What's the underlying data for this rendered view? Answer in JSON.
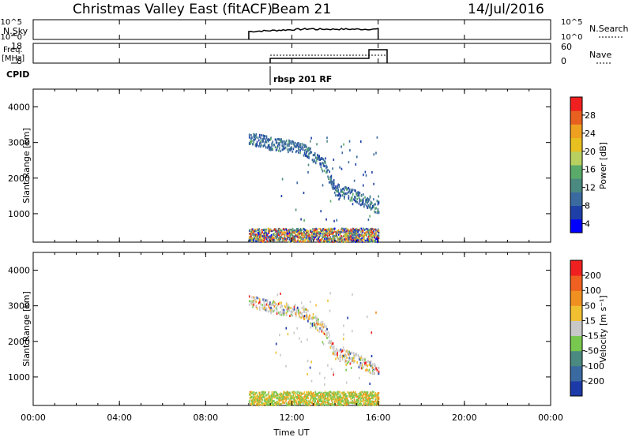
{
  "header": {
    "title": "Christmas Valley East (fitACF)",
    "beam": "Beam 21",
    "date": "14/Jul/2016"
  },
  "aux_panels": {
    "nsky_label": "N.Sky",
    "nsky_ticks": [
      "10^5",
      "10^0"
    ],
    "nsearch_label": "N.Search",
    "nsearch_ticks": [
      "10^5",
      "10^0"
    ],
    "freq_label_1": "Freq.",
    "freq_label_2": "[MHz]",
    "freq_ticks": [
      "18",
      "8"
    ],
    "nave_label": "Nave",
    "nave_ticks": [
      "60",
      "0"
    ],
    "cpid_label": "CPID",
    "cpid_text": "rbsp 201 RF"
  },
  "chart_data": [
    {
      "type": "heatmap",
      "title": "",
      "xlabel": "",
      "ylabel": "Slant Range [km]",
      "yticks": [
        "4000",
        "3000",
        "2000",
        "1000"
      ],
      "ylim": [
        200,
        4500
      ],
      "xlim": [
        "00:00",
        "24:00"
      ],
      "colorbar": {
        "label": "Power [dB]",
        "ticks": [
          "28",
          "24",
          "20",
          "16",
          "12",
          "8",
          "4"
        ],
        "range": [
          0,
          30
        ],
        "colors": [
          "#0000ff",
          "#1e3fa8",
          "#3a6aa0",
          "#4a8a80",
          "#5aaa6a",
          "#b8d060",
          "#e8c020",
          "#f0a020",
          "#e86020",
          "#f02020"
        ]
      },
      "data_extent": {
        "t_start": "10:00",
        "t_end": "16:00",
        "tracks": [
          {
            "t": "10:00",
            "range_km": 3150
          },
          {
            "t": "11:00",
            "range_km": 3000
          },
          {
            "t": "12:30",
            "range_km": 2850
          },
          {
            "t": "13:30",
            "range_km": 2350
          },
          {
            "t": "14:00",
            "range_km": 1700
          },
          {
            "t": "15:00",
            "range_km": 1500
          },
          {
            "t": "16:00",
            "range_km": 1200
          }
        ]
      }
    },
    {
      "type": "heatmap",
      "title": "",
      "xlabel": "Time UT",
      "ylabel": "Slant Range [km]",
      "yticks": [
        "4000",
        "3000",
        "2000",
        "1000"
      ],
      "xticks": [
        "00:00",
        "04:00",
        "08:00",
        "12:00",
        "16:00",
        "20:00",
        "00:00"
      ],
      "ylim": [
        200,
        4500
      ],
      "colorbar": {
        "label": "Velocity [m s⁻¹]",
        "ticks": [
          "200",
          "100",
          "50",
          "15",
          "-15",
          "-50",
          "-100",
          "-200"
        ],
        "colors": [
          "#1c3aa8",
          "#3a6aa0",
          "#4a8a80",
          "#78c850",
          "#c8c8c8",
          "#f0c030",
          "#f09020",
          "#f06020",
          "#f02020"
        ]
      }
    }
  ]
}
